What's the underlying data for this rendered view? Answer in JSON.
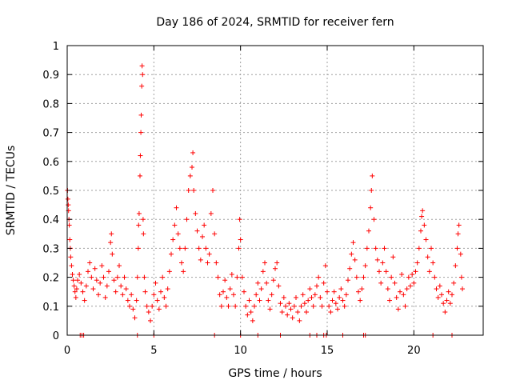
{
  "chart_data": {
    "type": "scatter",
    "title": "Day 186 of 2024, SRMTID for receiver fern",
    "xlabel": "GPS time / hours",
    "ylabel": "SRMTID / TECUs",
    "xlim": [
      0,
      24
    ],
    "ylim": [
      0,
      1
    ],
    "x_ticks": [
      0,
      5,
      10,
      15,
      20
    ],
    "y_ticks": [
      0,
      0.1,
      0.2,
      0.3,
      0.4,
      0.5,
      0.6,
      0.7,
      0.8,
      0.9,
      1
    ],
    "grid": true,
    "marker": "plus",
    "series_color": "#ff0000",
    "series": [
      {
        "name": "SRMTID",
        "points": [
          [
            0.02,
            0.5
          ],
          [
            0.04,
            0.47
          ],
          [
            0.06,
            0.45
          ],
          [
            0.08,
            0.43
          ],
          [
            0.1,
            0.4
          ],
          [
            0.12,
            0.38
          ],
          [
            0.15,
            0.33
          ],
          [
            0.18,
            0.3
          ],
          [
            0.2,
            0.27
          ],
          [
            0.25,
            0.24
          ],
          [
            0.3,
            0.21
          ],
          [
            0.35,
            0.19
          ],
          [
            0.4,
            0.17
          ],
          [
            0.45,
            0.15
          ],
          [
            0.5,
            0.13
          ],
          [
            0.55,
            0.16
          ],
          [
            0.6,
            0.19
          ],
          [
            0.7,
            0.21
          ],
          [
            0.8,
            0.18
          ],
          [
            0.9,
            0.15
          ],
          [
            1.0,
            0.12
          ],
          [
            1.1,
            0.17
          ],
          [
            1.2,
            0.22
          ],
          [
            1.3,
            0.25
          ],
          [
            1.4,
            0.2
          ],
          [
            1.5,
            0.16
          ],
          [
            1.6,
            0.23
          ],
          [
            1.7,
            0.19
          ],
          [
            1.8,
            0.14
          ],
          [
            1.9,
            0.18
          ],
          [
            2.0,
            0.24
          ],
          [
            2.1,
            0.2
          ],
          [
            2.2,
            0.13
          ],
          [
            2.3,
            0.17
          ],
          [
            2.4,
            0.22
          ],
          [
            2.5,
            0.32
          ],
          [
            2.55,
            0.35
          ],
          [
            2.6,
            0.28
          ],
          [
            2.7,
            0.19
          ],
          [
            2.8,
            0.15
          ],
          [
            2.9,
            0.2
          ],
          [
            3.0,
            0.24
          ],
          [
            3.1,
            0.17
          ],
          [
            3.2,
            0.14
          ],
          [
            3.3,
            0.2
          ],
          [
            3.4,
            0.16
          ],
          [
            3.5,
            0.12
          ],
          [
            3.6,
            0.1
          ],
          [
            3.7,
            0.14
          ],
          [
            3.8,
            0.09
          ],
          [
            3.9,
            0.06
          ],
          [
            4.0,
            0.12
          ],
          [
            4.05,
            0.2
          ],
          [
            4.1,
            0.3
          ],
          [
            4.12,
            0.38
          ],
          [
            4.15,
            0.42
          ],
          [
            4.2,
            0.55
          ],
          [
            4.22,
            0.62
          ],
          [
            4.25,
            0.7
          ],
          [
            4.27,
            0.76
          ],
          [
            4.3,
            0.86
          ],
          [
            4.32,
            0.93
          ],
          [
            4.35,
            0.9
          ],
          [
            4.38,
            0.4
          ],
          [
            4.4,
            0.35
          ],
          [
            4.45,
            0.2
          ],
          [
            4.5,
            0.15
          ],
          [
            4.6,
            0.1
          ],
          [
            4.7,
            0.08
          ],
          [
            4.8,
            0.05
          ],
          [
            4.9,
            0.1
          ],
          [
            5.0,
            0.14
          ],
          [
            5.1,
            0.18
          ],
          [
            5.2,
            0.12
          ],
          [
            5.3,
            0.09
          ],
          [
            5.4,
            0.15
          ],
          [
            5.5,
            0.2
          ],
          [
            5.6,
            0.13
          ],
          [
            5.7,
            0.1
          ],
          [
            5.8,
            0.16
          ],
          [
            5.9,
            0.22
          ],
          [
            6.0,
            0.28
          ],
          [
            6.1,
            0.33
          ],
          [
            6.2,
            0.38
          ],
          [
            6.3,
            0.44
          ],
          [
            6.4,
            0.35
          ],
          [
            6.5,
            0.3
          ],
          [
            6.6,
            0.25
          ],
          [
            6.7,
            0.22
          ],
          [
            6.8,
            0.3
          ],
          [
            6.9,
            0.4
          ],
          [
            7.0,
            0.5
          ],
          [
            7.1,
            0.55
          ],
          [
            7.2,
            0.58
          ],
          [
            7.25,
            0.63
          ],
          [
            7.3,
            0.5
          ],
          [
            7.4,
            0.42
          ],
          [
            7.5,
            0.36
          ],
          [
            7.6,
            0.3
          ],
          [
            7.7,
            0.26
          ],
          [
            7.8,
            0.34
          ],
          [
            7.9,
            0.38
          ],
          [
            8.0,
            0.3
          ],
          [
            8.1,
            0.25
          ],
          [
            8.2,
            0.28
          ],
          [
            8.3,
            0.42
          ],
          [
            8.4,
            0.5
          ],
          [
            8.5,
            0.35
          ],
          [
            8.6,
            0.25
          ],
          [
            8.7,
            0.2
          ],
          [
            8.8,
            0.14
          ],
          [
            8.9,
            0.1
          ],
          [
            9.0,
            0.15
          ],
          [
            9.1,
            0.19
          ],
          [
            9.2,
            0.13
          ],
          [
            9.3,
            0.1
          ],
          [
            9.4,
            0.16
          ],
          [
            9.5,
            0.21
          ],
          [
            9.6,
            0.14
          ],
          [
            9.7,
            0.1
          ],
          [
            9.8,
            0.2
          ],
          [
            9.9,
            0.3
          ],
          [
            9.95,
            0.4
          ],
          [
            10.0,
            0.33
          ],
          [
            10.1,
            0.2
          ],
          [
            10.2,
            0.15
          ],
          [
            10.3,
            0.1
          ],
          [
            10.4,
            0.07
          ],
          [
            10.5,
            0.12
          ],
          [
            10.6,
            0.08
          ],
          [
            10.7,
            0.05
          ],
          [
            10.8,
            0.1
          ],
          [
            10.9,
            0.14
          ],
          [
            11.0,
            0.18
          ],
          [
            11.1,
            0.12
          ],
          [
            11.2,
            0.16
          ],
          [
            11.3,
            0.22
          ],
          [
            11.4,
            0.25
          ],
          [
            11.5,
            0.18
          ],
          [
            11.6,
            0.12
          ],
          [
            11.7,
            0.09
          ],
          [
            11.8,
            0.14
          ],
          [
            11.9,
            0.19
          ],
          [
            12.0,
            0.23
          ],
          [
            12.1,
            0.25
          ],
          [
            12.2,
            0.17
          ],
          [
            12.3,
            0.11
          ],
          [
            12.4,
            0.08
          ],
          [
            12.5,
            0.13
          ],
          [
            12.6,
            0.1
          ],
          [
            12.7,
            0.07
          ],
          [
            12.8,
            0.11
          ],
          [
            12.9,
            0.09
          ],
          [
            13.0,
            0.06
          ],
          [
            13.1,
            0.1
          ],
          [
            13.2,
            0.13
          ],
          [
            13.3,
            0.08
          ],
          [
            13.4,
            0.05
          ],
          [
            13.5,
            0.1
          ],
          [
            13.6,
            0.14
          ],
          [
            13.7,
            0.11
          ],
          [
            13.8,
            0.08
          ],
          [
            13.9,
            0.12
          ],
          [
            14.0,
            0.16
          ],
          [
            14.1,
            0.13
          ],
          [
            14.2,
            0.1
          ],
          [
            14.3,
            0.14
          ],
          [
            14.4,
            0.17
          ],
          [
            14.5,
            0.2
          ],
          [
            14.6,
            0.13
          ],
          [
            14.7,
            0.1
          ],
          [
            14.8,
            0.18
          ],
          [
            14.9,
            0.24
          ],
          [
            15.0,
            0.15
          ],
          [
            15.1,
            0.1
          ],
          [
            15.2,
            0.08
          ],
          [
            15.3,
            0.12
          ],
          [
            15.4,
            0.15
          ],
          [
            15.5,
            0.11
          ],
          [
            15.6,
            0.09
          ],
          [
            15.7,
            0.13
          ],
          [
            15.8,
            0.16
          ],
          [
            15.9,
            0.12
          ],
          [
            16.0,
            0.1
          ],
          [
            16.1,
            0.14
          ],
          [
            16.2,
            0.19
          ],
          [
            16.3,
            0.23
          ],
          [
            16.4,
            0.28
          ],
          [
            16.5,
            0.32
          ],
          [
            16.6,
            0.26
          ],
          [
            16.7,
            0.2
          ],
          [
            16.8,
            0.15
          ],
          [
            16.9,
            0.12
          ],
          [
            17.0,
            0.16
          ],
          [
            17.1,
            0.2
          ],
          [
            17.2,
            0.24
          ],
          [
            17.3,
            0.3
          ],
          [
            17.4,
            0.36
          ],
          [
            17.5,
            0.44
          ],
          [
            17.55,
            0.5
          ],
          [
            17.6,
            0.55
          ],
          [
            17.7,
            0.4
          ],
          [
            17.8,
            0.3
          ],
          [
            17.9,
            0.26
          ],
          [
            18.0,
            0.22
          ],
          [
            18.1,
            0.18
          ],
          [
            18.2,
            0.25
          ],
          [
            18.3,
            0.3
          ],
          [
            18.4,
            0.22
          ],
          [
            18.5,
            0.16
          ],
          [
            18.6,
            0.12
          ],
          [
            18.7,
            0.2
          ],
          [
            18.8,
            0.27
          ],
          [
            18.9,
            0.18
          ],
          [
            19.0,
            0.13
          ],
          [
            19.1,
            0.09
          ],
          [
            19.2,
            0.15
          ],
          [
            19.3,
            0.21
          ],
          [
            19.4,
            0.14
          ],
          [
            19.5,
            0.1
          ],
          [
            19.6,
            0.16
          ],
          [
            19.7,
            0.2
          ],
          [
            19.8,
            0.17
          ],
          [
            19.9,
            0.21
          ],
          [
            20.0,
            0.18
          ],
          [
            20.1,
            0.22
          ],
          [
            20.2,
            0.25
          ],
          [
            20.3,
            0.3
          ],
          [
            20.4,
            0.36
          ],
          [
            20.45,
            0.41
          ],
          [
            20.5,
            0.43
          ],
          [
            20.6,
            0.38
          ],
          [
            20.7,
            0.33
          ],
          [
            20.8,
            0.27
          ],
          [
            20.9,
            0.22
          ],
          [
            21.0,
            0.3
          ],
          [
            21.1,
            0.25
          ],
          [
            21.2,
            0.2
          ],
          [
            21.3,
            0.16
          ],
          [
            21.4,
            0.13
          ],
          [
            21.5,
            0.17
          ],
          [
            21.6,
            0.14
          ],
          [
            21.7,
            0.11
          ],
          [
            21.8,
            0.08
          ],
          [
            21.9,
            0.12
          ],
          [
            22.0,
            0.15
          ],
          [
            22.1,
            0.11
          ],
          [
            22.2,
            0.14
          ],
          [
            22.3,
            0.18
          ],
          [
            22.4,
            0.24
          ],
          [
            22.5,
            0.3
          ],
          [
            22.55,
            0.35
          ],
          [
            22.6,
            0.38
          ],
          [
            22.7,
            0.28
          ],
          [
            22.75,
            0.2
          ],
          [
            22.8,
            0.16
          ]
        ]
      }
    ],
    "zero_points_x": [
      0.75,
      0.85,
      0.95,
      4.05,
      5.0,
      8.5,
      10.0,
      11.0,
      12.3,
      14.0,
      14.4,
      14.8,
      14.95,
      15.9,
      17.1,
      17.2,
      21.1,
      22.2
    ]
  }
}
